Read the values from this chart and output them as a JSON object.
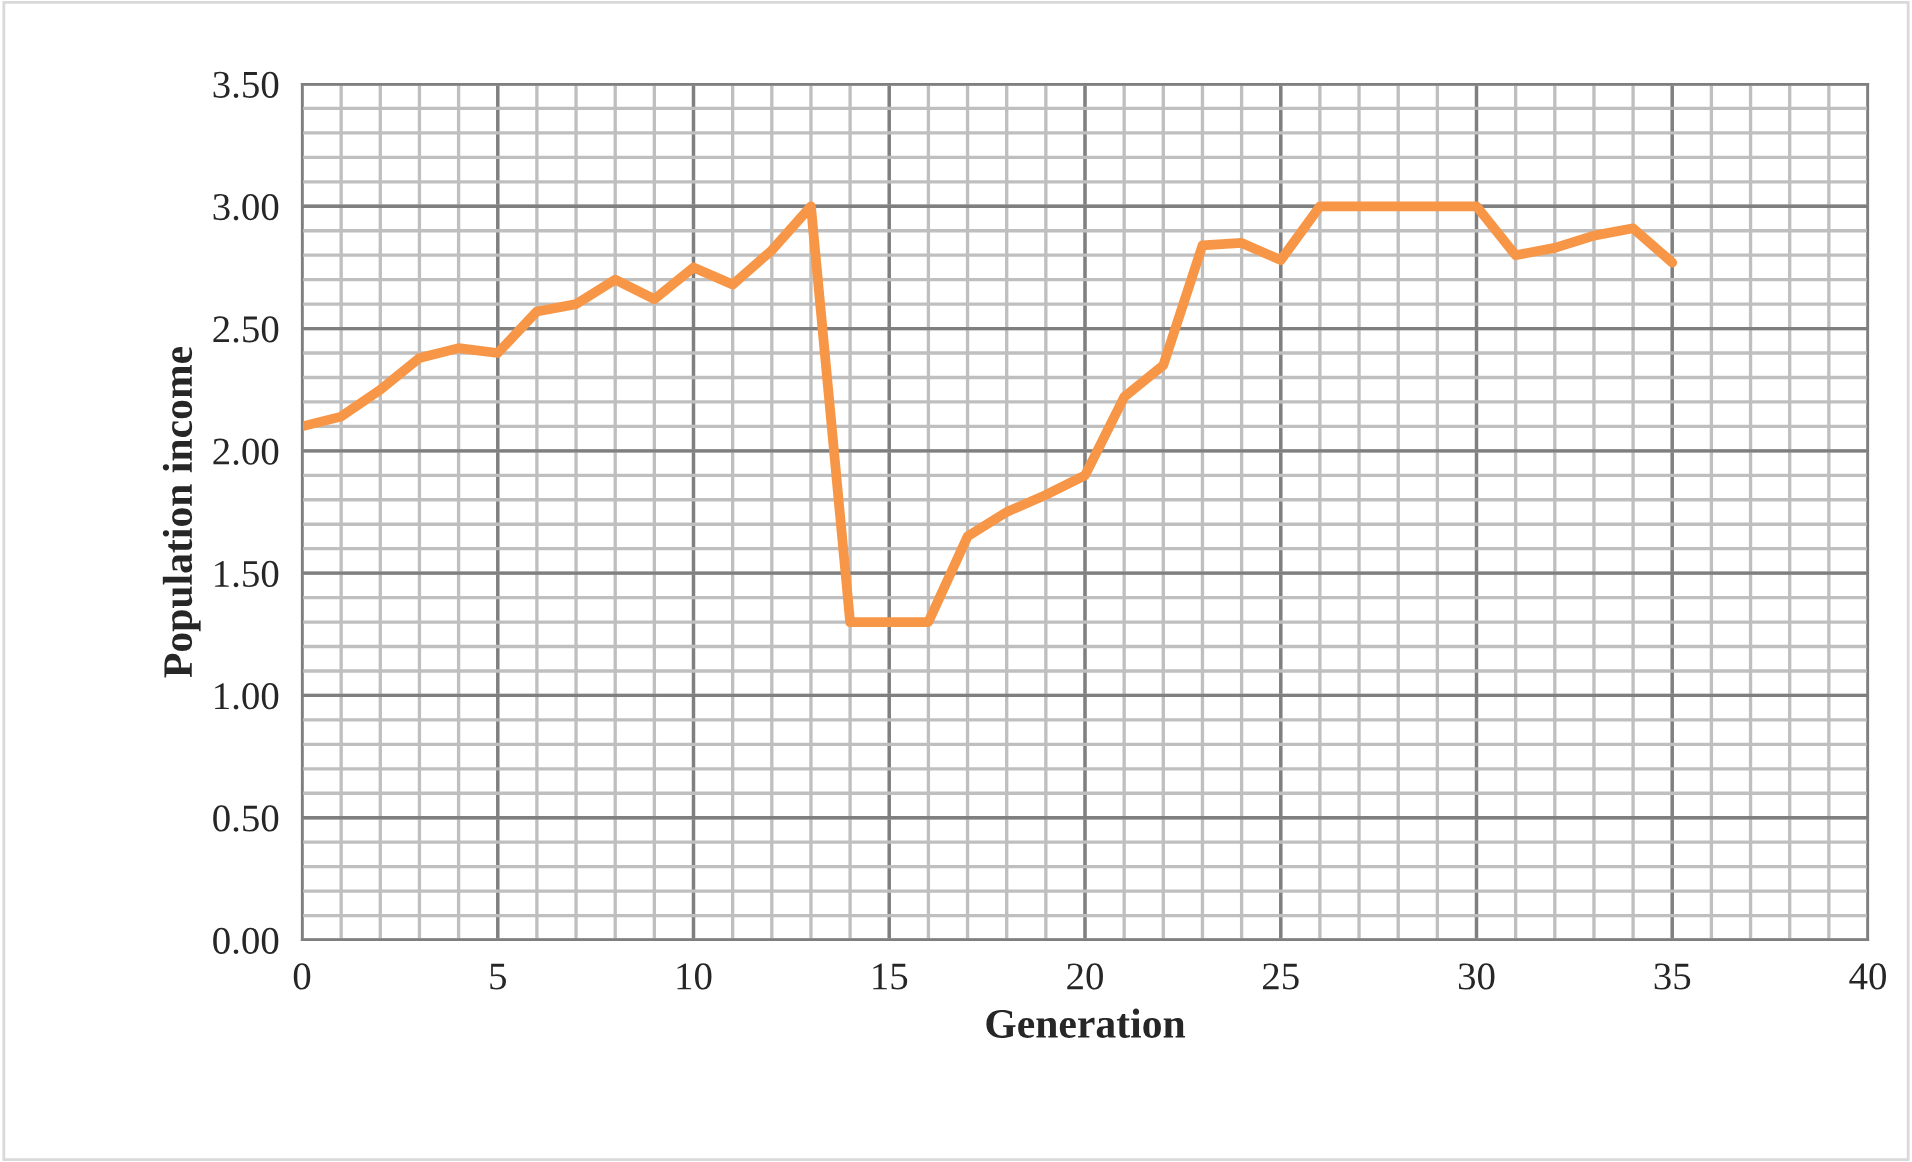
{
  "chart_data": {
    "type": "line",
    "xlabel": "Generation",
    "ylabel": "Population income",
    "x": [
      0,
      1,
      2,
      3,
      4,
      5,
      6,
      7,
      8,
      9,
      10,
      11,
      12,
      13,
      14,
      15,
      16,
      17,
      18,
      19,
      20,
      21,
      22,
      23,
      24,
      25,
      26,
      27,
      28,
      29,
      30,
      31,
      32,
      33,
      34,
      35
    ],
    "series": [
      {
        "color": "#f79646",
        "values": [
          2.1,
          2.14,
          2.25,
          2.38,
          2.42,
          2.4,
          2.57,
          2.6,
          2.7,
          2.62,
          2.75,
          2.68,
          2.82,
          3.0,
          1.3,
          1.3,
          1.3,
          1.65,
          1.75,
          1.82,
          1.9,
          2.22,
          2.35,
          2.84,
          2.85,
          2.78,
          3.0,
          3.0,
          3.0,
          3.0,
          3.0,
          2.8,
          2.83,
          2.88,
          2.91,
          2.77
        ]
      }
    ],
    "xlim": [
      0,
      40
    ],
    "xticks": [
      0,
      5,
      10,
      15,
      20,
      25,
      30,
      35,
      40
    ],
    "ylim": [
      0,
      3.5
    ],
    "yticks": [
      {
        "value": 0,
        "label": "0.00"
      },
      {
        "value": 0.5,
        "label": "0.50"
      },
      {
        "value": 1,
        "label": "1.00"
      },
      {
        "value": 1.5,
        "label": "1.50"
      },
      {
        "value": 2,
        "label": "2.00"
      },
      {
        "value": 2.5,
        "label": "2.50"
      },
      {
        "value": 3,
        "label": "3.00"
      },
      {
        "value": 3.5,
        "label": "3.50"
      }
    ],
    "grid": true,
    "marker": "none",
    "line_style": "solid",
    "legend": false
  }
}
